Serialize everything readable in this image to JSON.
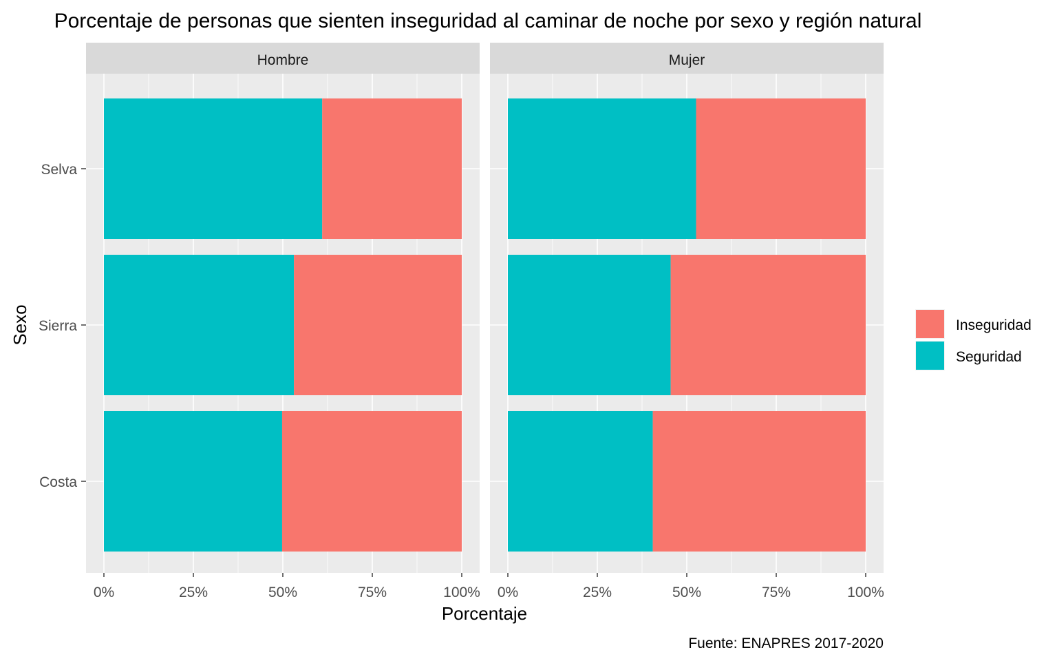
{
  "chart_data": {
    "type": "bar",
    "orientation": "horizontal",
    "stacked": "percent",
    "title": "Porcentaje de personas que sienten inseguridad al caminar de noche por sexo y región natural",
    "xlabel": "Porcentaje",
    "ylabel": "Sexo",
    "caption": "Fuente: ENAPRES 2017-2020",
    "categories": [
      "Costa",
      "Sierra",
      "Selva"
    ],
    "x_ticks": [
      "0%",
      "25%",
      "50%",
      "75%",
      "100%"
    ],
    "xlim": [
      0,
      100
    ],
    "grid": true,
    "legend_position": "right",
    "legend": [
      {
        "name": "Inseguridad",
        "color": "#F8766D"
      },
      {
        "name": "Seguridad",
        "color": "#00BFC4"
      }
    ],
    "facets": [
      {
        "label": "Hombre",
        "series": [
          {
            "name": "Seguridad",
            "values": [
              49.8,
              53.1,
              61.0
            ]
          },
          {
            "name": "Inseguridad",
            "values": [
              50.2,
              46.9,
              39.0
            ]
          }
        ]
      },
      {
        "label": "Mujer",
        "series": [
          {
            "name": "Seguridad",
            "values": [
              40.5,
              45.5,
              52.6
            ]
          },
          {
            "name": "Inseguridad",
            "values": [
              59.5,
              54.5,
              47.4
            ]
          }
        ]
      }
    ]
  }
}
